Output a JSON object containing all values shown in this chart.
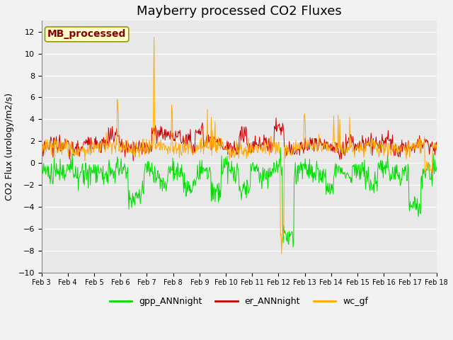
{
  "title": "Mayberry processed CO2 Fluxes",
  "ylabel": "CO2 Flux (urology/m2/s)",
  "ylim": [
    -10,
    13
  ],
  "yticks": [
    -10,
    -8,
    -6,
    -4,
    -2,
    0,
    2,
    4,
    6,
    8,
    10,
    12
  ],
  "xtick_labels": [
    "Feb 3",
    "Feb 4",
    "Feb 5",
    "Feb 6",
    "Feb 7",
    "Feb 8",
    "Feb 9",
    "Feb 10",
    "Feb 11",
    "Feb 12",
    "Feb 13",
    "Feb 14",
    "Feb 15",
    "Feb 16",
    "Feb 17",
    "Feb 18"
  ],
  "color_gpp": "#00dd00",
  "color_er": "#cc0000",
  "color_wc": "#ffaa00",
  "linewidth": 0.7,
  "legend_label_gpp": "gpp_ANNnight",
  "legend_label_er": "er_ANNnight",
  "legend_label_wc": "wc_gf",
  "annotation_text": "MB_processed",
  "annotation_color": "#880000",
  "annotation_bg": "#ffffcc",
  "annotation_border": "#999900",
  "plot_bg": "#e8e8e8",
  "fig_bg": "#f2f2f2",
  "grid_color": "#ffffff",
  "title_fontsize": 13,
  "ylabel_fontsize": 9,
  "tick_fontsize": 8,
  "legend_fontsize": 9,
  "annot_fontsize": 10
}
